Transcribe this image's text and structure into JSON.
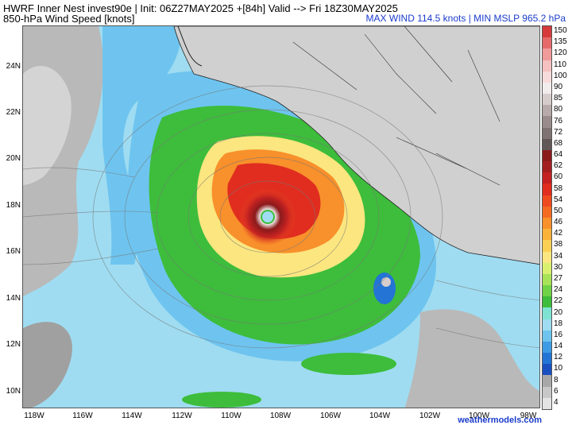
{
  "header": {
    "line1": "HWRF Inner Nest  invest90e | Init: 06Z27MAY2025 +[84h] Valid --> Fri 18Z30MAY2025",
    "line2": "850-hPa Wind Speed [knots]",
    "stats": "MAX WIND 114.5 knots | MIN MSLP 965.2 hPa"
  },
  "map": {
    "lat_labels": [
      "24N",
      "22N",
      "20N",
      "18N",
      "16N",
      "14N",
      "12N",
      "10N"
    ],
    "lon_labels": [
      "118W",
      "116W",
      "114W",
      "112W",
      "110W",
      "108W",
      "106W",
      "104W",
      "102W",
      "100W",
      "98W"
    ]
  },
  "colorbar": {
    "labels": [
      "150",
      "135",
      "120",
      "110",
      "100",
      "90",
      "85",
      "80",
      "76",
      "72",
      "68",
      "64",
      "62",
      "60",
      "58",
      "54",
      "50",
      "46",
      "42",
      "38",
      "34",
      "30",
      "27",
      "24",
      "22",
      "20",
      "18",
      "16",
      "14",
      "12",
      "10",
      "8",
      "6",
      "4"
    ],
    "colors": [
      "#d63a3a",
      "#e66a6a",
      "#f09a9a",
      "#f5c0c0",
      "#f7dada",
      "#f2eded",
      "#d6cccc",
      "#b8aaaa",
      "#9a8c8c",
      "#7e7272",
      "#625757",
      "#8b1a1a",
      "#a31f1f",
      "#c42222",
      "#e02d1f",
      "#ee4a1f",
      "#f46a23",
      "#f8902b",
      "#fbb23a",
      "#fcd055",
      "#fbe680",
      "#d9ef6e",
      "#a8e257",
      "#70d246",
      "#3dbd3b",
      "#7fe3d4",
      "#9fdcf1",
      "#6ec4ef",
      "#3f9be3",
      "#2374d4",
      "#1a4fc2",
      "#a8a8a8",
      "#c8c8c8",
      "#e4e4e4"
    ]
  },
  "credit": "weathermodels.com"
}
